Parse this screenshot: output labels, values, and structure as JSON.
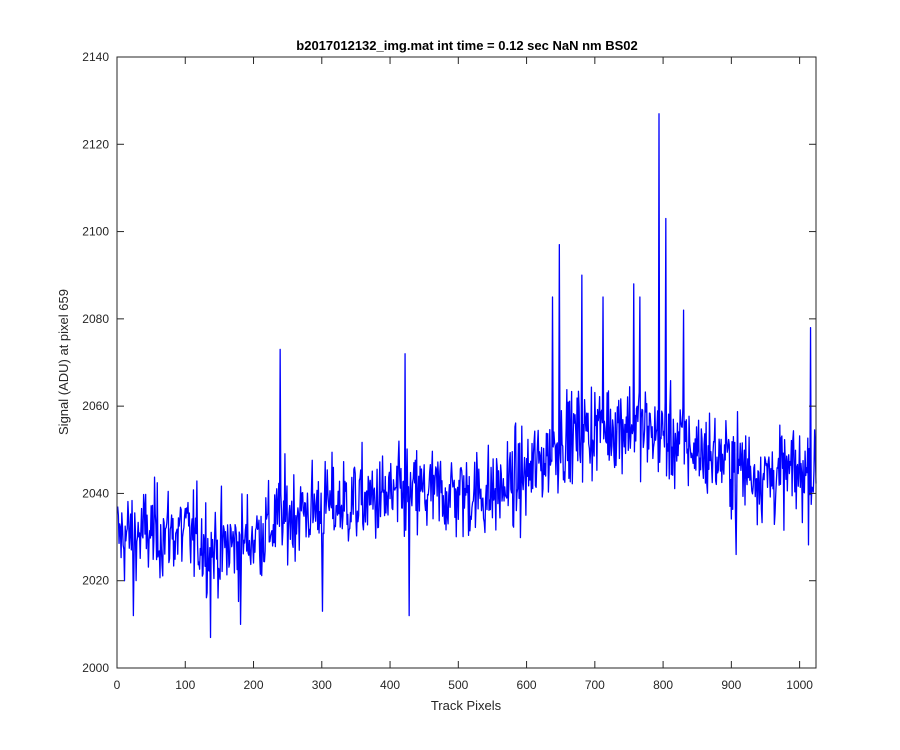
{
  "chart_data": {
    "type": "line",
    "title": "b2017012132_img.mat int time = 0.12 sec  NaN nm BS02",
    "xlabel": "Track Pixels",
    "ylabel": "Signal (ADU) at pixel 659",
    "xlim": [
      0,
      1024
    ],
    "ylim": [
      2000,
      2140
    ],
    "xticks": [
      0,
      100,
      200,
      300,
      400,
      500,
      600,
      700,
      800,
      900,
      1000
    ],
    "yticks": [
      2000,
      2020,
      2040,
      2060,
      2080,
      2100,
      2120,
      2140
    ],
    "x_tick_labels": [
      "0",
      "100",
      "200",
      "300",
      "400",
      "500",
      "600",
      "700",
      "800",
      "900",
      "1000"
    ],
    "y_tick_labels": [
      "2000",
      "2020",
      "2040",
      "2060",
      "2080",
      "2100",
      "2120",
      "2140"
    ],
    "grid": false,
    "line_color": "#0000ff",
    "series": [
      {
        "x_start": 1,
        "x_step": 1,
        "trend": {
          "x": [
            0,
            50,
            100,
            150,
            200,
            250,
            300,
            350,
            400,
            450,
            500,
            550,
            600,
            650,
            700,
            750,
            800,
            850,
            900,
            950,
            1024
          ],
          "y": [
            2030,
            2031,
            2031,
            2027,
            2030,
            2035,
            2037,
            2038,
            2039,
            2040,
            2040,
            2040,
            2044,
            2052,
            2055,
            2056,
            2053,
            2050,
            2047,
            2044,
            2045
          ]
        },
        "noise_amplitude": 7,
        "spikes": [
          {
            "x": 794,
            "y": 2127
          },
          {
            "x": 804,
            "y": 2103
          },
          {
            "x": 648,
            "y": 2097
          },
          {
            "x": 638,
            "y": 2085
          },
          {
            "x": 681,
            "y": 2090
          },
          {
            "x": 712,
            "y": 2085
          },
          {
            "x": 757,
            "y": 2088
          },
          {
            "x": 766,
            "y": 2085
          },
          {
            "x": 830,
            "y": 2082
          },
          {
            "x": 239,
            "y": 2073
          },
          {
            "x": 422,
            "y": 2072
          },
          {
            "x": 1016,
            "y": 2078
          },
          {
            "x": 137,
            "y": 2007
          },
          {
            "x": 181,
            "y": 2010
          },
          {
            "x": 428,
            "y": 2012
          },
          {
            "x": 301,
            "y": 2013
          },
          {
            "x": 24,
            "y": 2012
          },
          {
            "x": 907,
            "y": 2026
          }
        ]
      }
    ]
  }
}
